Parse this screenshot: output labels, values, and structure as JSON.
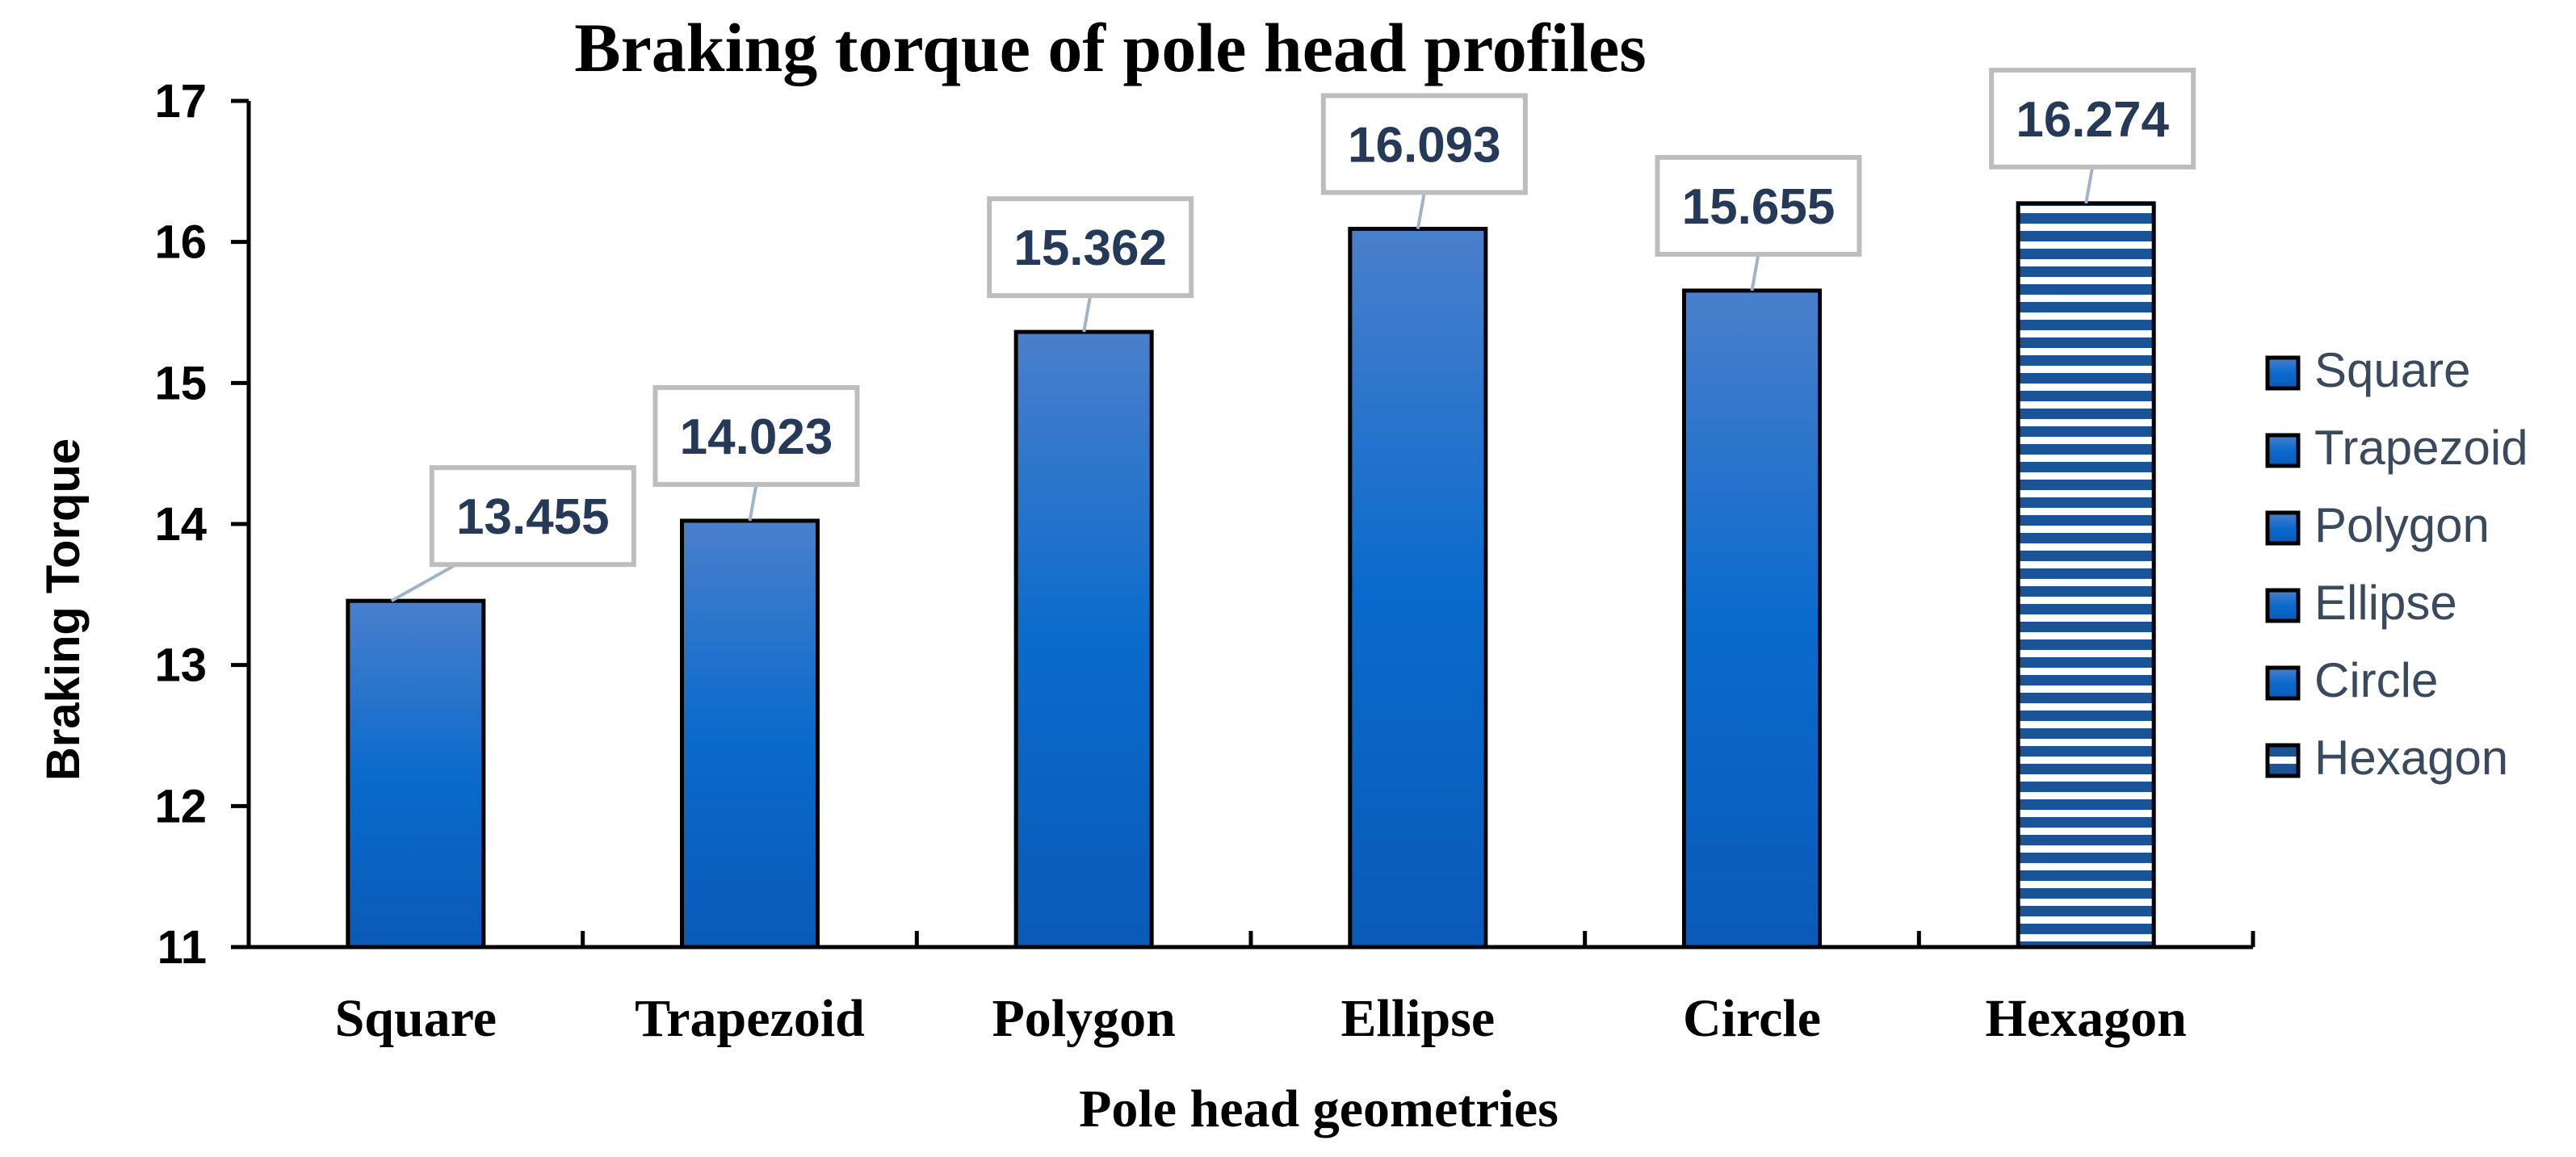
{
  "chart_data": {
    "type": "bar",
    "title": "Braking torque of pole head profiles",
    "xlabel": "Pole head geometries",
    "ylabel": "Braking Torque",
    "categories": [
      "Square",
      "Trapezoid",
      "Polygon",
      "Ellipse",
      "Circle",
      "Hexagon"
    ],
    "values": [
      13.455,
      14.023,
      15.362,
      16.093,
      15.655,
      16.274
    ],
    "value_labels": [
      "13.455",
      "14.023",
      "15.362",
      "16.093",
      "15.655",
      "16.274"
    ],
    "ylim": [
      11,
      17
    ],
    "yticks": [
      "11",
      "12",
      "13",
      "14",
      "15",
      "16",
      "17"
    ],
    "grid": false,
    "legend": {
      "position": "right",
      "entries": [
        "Square",
        "Trapezoid",
        "Polygon",
        "Ellipse",
        "Circle",
        "Hexagon"
      ]
    },
    "colors": {
      "bar_top": "#4a7fcc",
      "bar_mid": "#0a6bcc",
      "bar_bottom": "#0a5ab8",
      "hexagon_stripe": "#1a5496",
      "label_text": "#243a58",
      "label_box_border": "#bdbdbd",
      "leader_line": "#9fb4c8",
      "legend_text": "#3a4a5e"
    },
    "series_patterns": [
      "gradient",
      "gradient",
      "gradient",
      "gradient",
      "gradient",
      "horizontal-stripes"
    ]
  }
}
